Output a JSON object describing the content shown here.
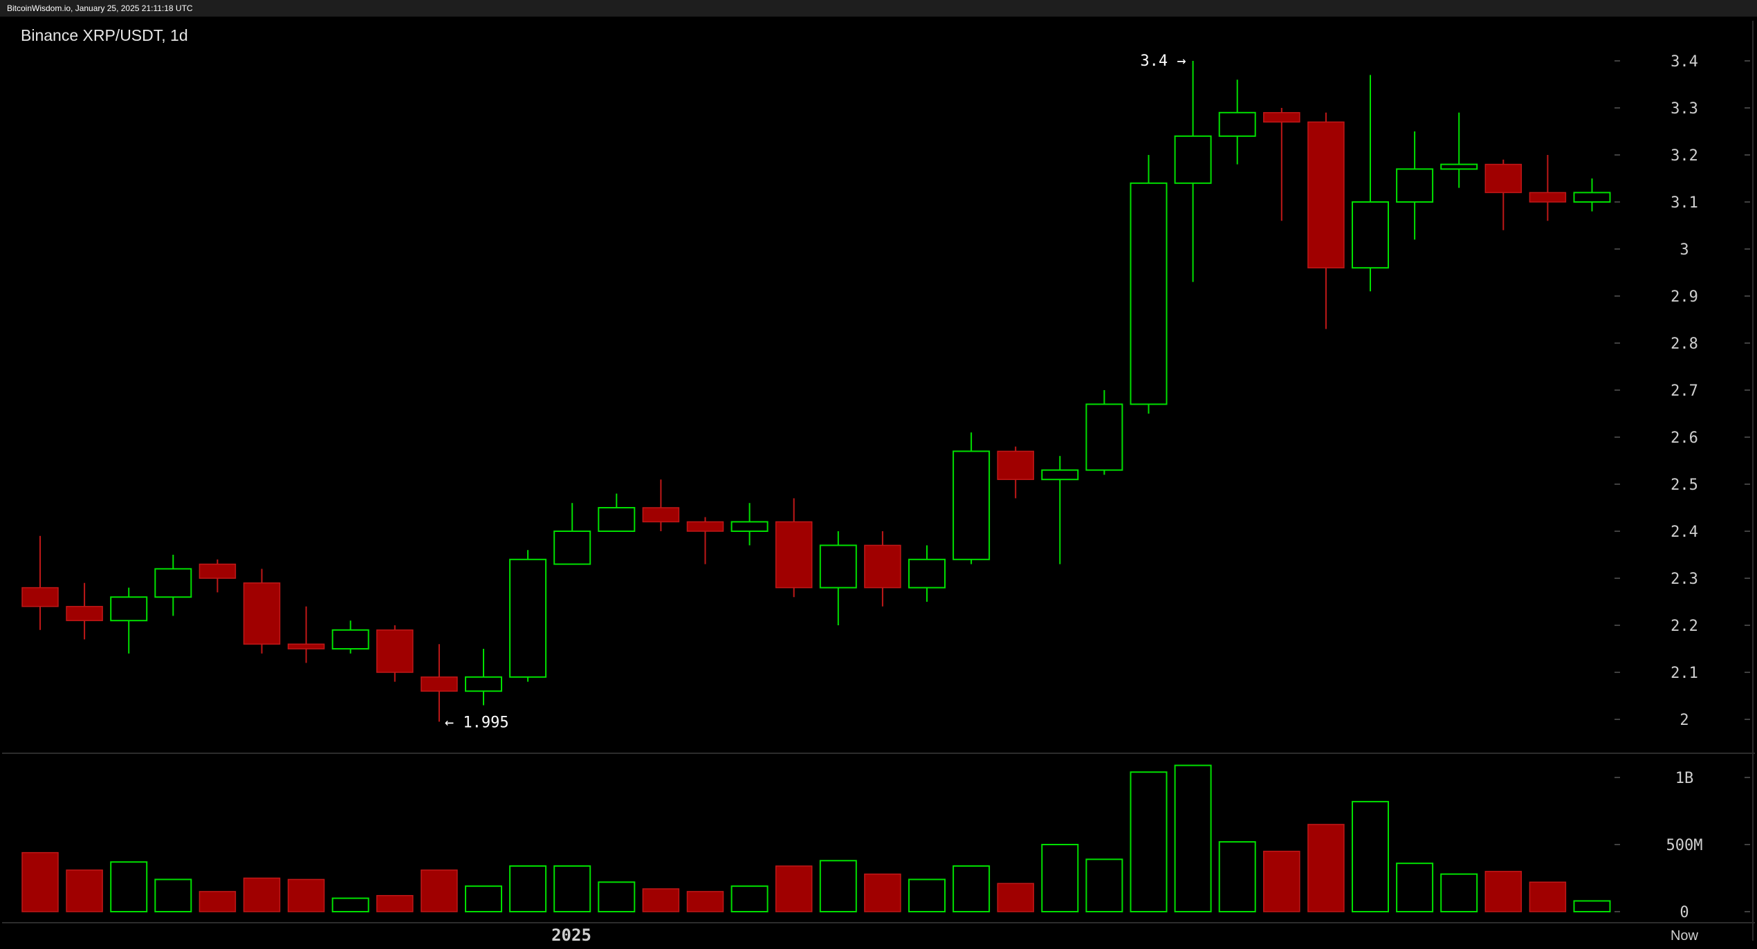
{
  "header": {
    "source_line": "BitcoinWisdom.io, January 25, 2025 21:11:18 UTC"
  },
  "chart_data": {
    "type": "candlestick",
    "title": "Binance XRP/USDT, 1d",
    "price_axis": {
      "ticks": [
        "3.4",
        "3.3",
        "3.2",
        "3.1",
        "3",
        "2.9",
        "2.8",
        "2.7",
        "2.6",
        "2.5",
        "2.4",
        "2.3",
        "2.2",
        "2.1",
        "2"
      ],
      "ylim": [
        2.0,
        3.4
      ]
    },
    "volume_axis": {
      "ticks": [
        "1B",
        "500M",
        "0"
      ],
      "ylim": [
        0,
        1000000000
      ]
    },
    "x_labels": [
      "2025",
      "Now"
    ],
    "annotations": {
      "high": "3.4 →",
      "low": "← 1.995"
    },
    "up_color": "#00e000",
    "down_color": "#a00000",
    "candles": [
      {
        "o": 2.28,
        "h": 2.39,
        "l": 2.19,
        "c": 2.24,
        "v": 440000000
      },
      {
        "o": 2.24,
        "h": 2.29,
        "l": 2.17,
        "c": 2.21,
        "v": 310000000
      },
      {
        "o": 2.21,
        "h": 2.28,
        "l": 2.14,
        "c": 2.26,
        "v": 370000000
      },
      {
        "o": 2.26,
        "h": 2.35,
        "l": 2.22,
        "c": 2.32,
        "v": 240000000
      },
      {
        "o": 2.33,
        "h": 2.34,
        "l": 2.27,
        "c": 2.3,
        "v": 150000000
      },
      {
        "o": 2.29,
        "h": 2.32,
        "l": 2.14,
        "c": 2.16,
        "v": 250000000
      },
      {
        "o": 2.16,
        "h": 2.24,
        "l": 2.12,
        "c": 2.15,
        "v": 240000000
      },
      {
        "o": 2.15,
        "h": 2.21,
        "l": 2.14,
        "c": 2.19,
        "v": 100000000
      },
      {
        "o": 2.19,
        "h": 2.2,
        "l": 2.08,
        "c": 2.1,
        "v": 120000000
      },
      {
        "o": 2.09,
        "h": 2.16,
        "l": 1.995,
        "c": 2.06,
        "v": 310000000
      },
      {
        "o": 2.06,
        "h": 2.15,
        "l": 2.03,
        "c": 2.09,
        "v": 190000000
      },
      {
        "o": 2.09,
        "h": 2.36,
        "l": 2.08,
        "c": 2.34,
        "v": 340000000
      },
      {
        "o": 2.33,
        "h": 2.46,
        "l": 2.33,
        "c": 2.4,
        "v": 340000000
      },
      {
        "o": 2.4,
        "h": 2.48,
        "l": 2.4,
        "c": 2.45,
        "v": 220000000
      },
      {
        "o": 2.45,
        "h": 2.51,
        "l": 2.4,
        "c": 2.42,
        "v": 170000000
      },
      {
        "o": 2.42,
        "h": 2.43,
        "l": 2.33,
        "c": 2.4,
        "v": 150000000
      },
      {
        "o": 2.4,
        "h": 2.46,
        "l": 2.37,
        "c": 2.42,
        "v": 190000000
      },
      {
        "o": 2.42,
        "h": 2.47,
        "l": 2.26,
        "c": 2.28,
        "v": 340000000
      },
      {
        "o": 2.28,
        "h": 2.4,
        "l": 2.2,
        "c": 2.37,
        "v": 380000000
      },
      {
        "o": 2.37,
        "h": 2.4,
        "l": 2.24,
        "c": 2.28,
        "v": 280000000
      },
      {
        "o": 2.28,
        "h": 2.37,
        "l": 2.25,
        "c": 2.34,
        "v": 240000000
      },
      {
        "o": 2.34,
        "h": 2.61,
        "l": 2.33,
        "c": 2.57,
        "v": 340000000
      },
      {
        "o": 2.57,
        "h": 2.58,
        "l": 2.47,
        "c": 2.51,
        "v": 210000000
      },
      {
        "o": 2.51,
        "h": 2.56,
        "l": 2.33,
        "c": 2.53,
        "v": 500000000
      },
      {
        "o": 2.53,
        "h": 2.7,
        "l": 2.52,
        "c": 2.67,
        "v": 390000000
      },
      {
        "o": 2.67,
        "h": 3.2,
        "l": 2.65,
        "c": 3.14,
        "v": 1040000000
      },
      {
        "o": 3.14,
        "h": 3.4,
        "l": 2.93,
        "c": 3.24,
        "v": 1090000000
      },
      {
        "o": 3.24,
        "h": 3.36,
        "l": 3.18,
        "c": 3.29,
        "v": 520000000
      },
      {
        "o": 3.29,
        "h": 3.3,
        "l": 3.06,
        "c": 3.27,
        "v": 450000000
      },
      {
        "o": 3.27,
        "h": 3.29,
        "l": 2.83,
        "c": 2.96,
        "v": 650000000
      },
      {
        "o": 2.96,
        "h": 3.37,
        "l": 2.91,
        "c": 3.1,
        "v": 820000000
      },
      {
        "o": 3.1,
        "h": 3.25,
        "l": 3.02,
        "c": 3.17,
        "v": 360000000
      },
      {
        "o": 3.17,
        "h": 3.29,
        "l": 3.13,
        "c": 3.18,
        "v": 280000000
      },
      {
        "o": 3.18,
        "h": 3.19,
        "l": 3.04,
        "c": 3.12,
        "v": 300000000
      },
      {
        "o": 3.12,
        "h": 3.2,
        "l": 3.06,
        "c": 3.1,
        "v": 220000000
      },
      {
        "o": 3.1,
        "h": 3.15,
        "l": 3.08,
        "c": 3.12,
        "v": 80000000
      }
    ]
  }
}
